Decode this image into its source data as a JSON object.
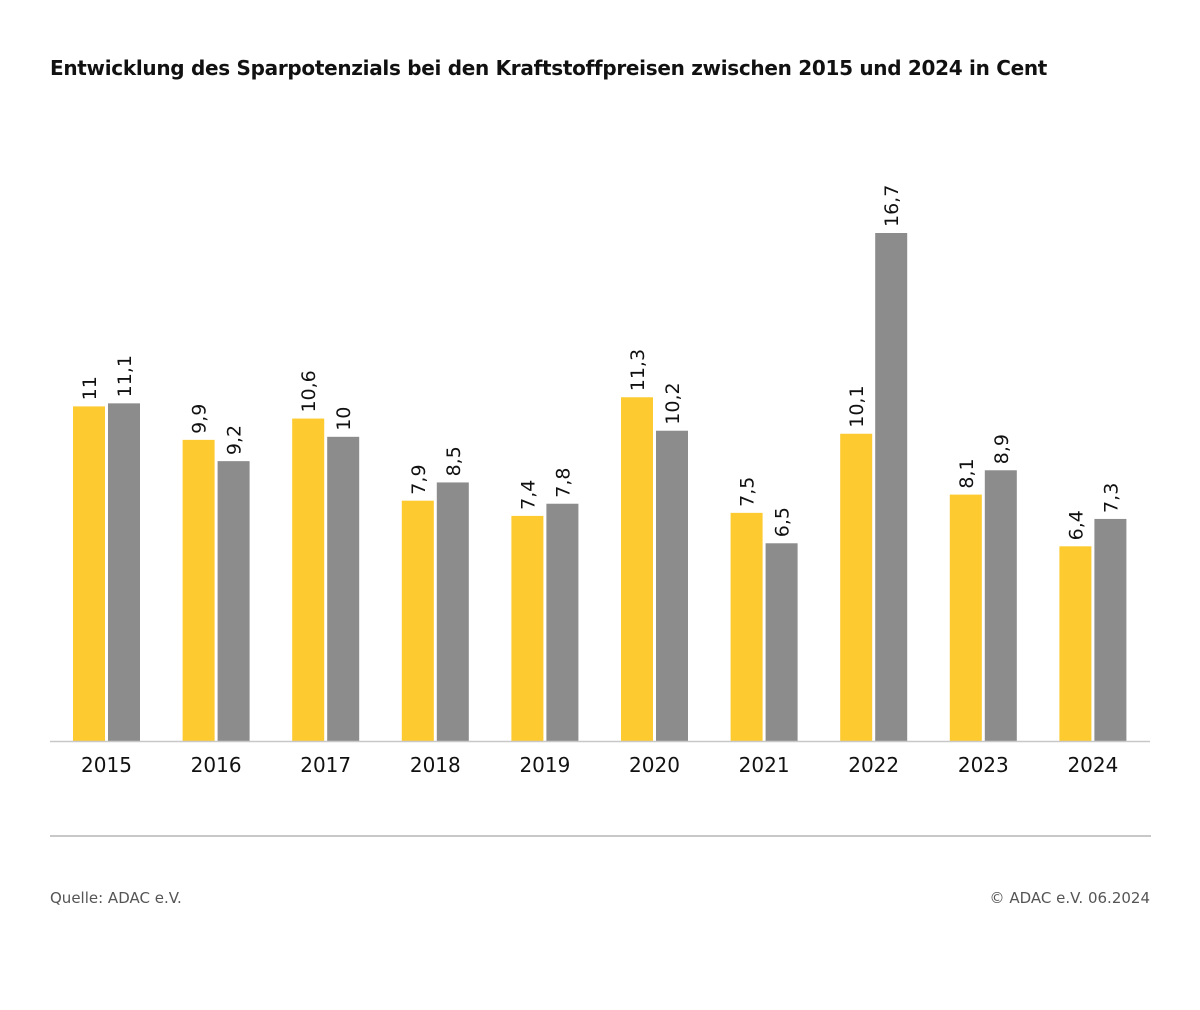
{
  "chart_data": {
    "type": "bar",
    "title": "Entwicklung des Sparpotenzials bei den Kraftstoffpreisen zwischen 2015 und 2024 in Cent",
    "categories": [
      "2015",
      "2016",
      "2017",
      "2018",
      "2019",
      "2020",
      "2021",
      "2022",
      "2023",
      "2024"
    ],
    "series": [
      {
        "values": [
          11,
          9.9,
          10.6,
          7.9,
          7.4,
          11.3,
          7.5,
          10.1,
          8.1,
          6.4
        ],
        "labels": [
          "11",
          "9,9",
          "10,6",
          "7,9",
          "7,4",
          "11,3",
          "7,5",
          "10,1",
          "8,1",
          "6,4"
        ],
        "color": "#fdca2f"
      },
      {
        "values": [
          11.1,
          9.2,
          10,
          8.5,
          7.8,
          10.2,
          6.5,
          16.7,
          8.9,
          7.3
        ],
        "labels": [
          "11,1",
          "9,2",
          "10",
          "8,5",
          "7,8",
          "10,2",
          "6,5",
          "16,7",
          "8,9",
          "7,3"
        ],
        "color": "#8c8c8c"
      }
    ],
    "xlabel": "",
    "ylabel": "",
    "ylim": [
      0,
      16.7
    ],
    "grid": false,
    "legend": "none",
    "data_labels": "rotated-vertical"
  },
  "footer": {
    "source": "Quelle: ADAC e.V.",
    "copyright": "© ADAC e.V. 06.2024"
  }
}
